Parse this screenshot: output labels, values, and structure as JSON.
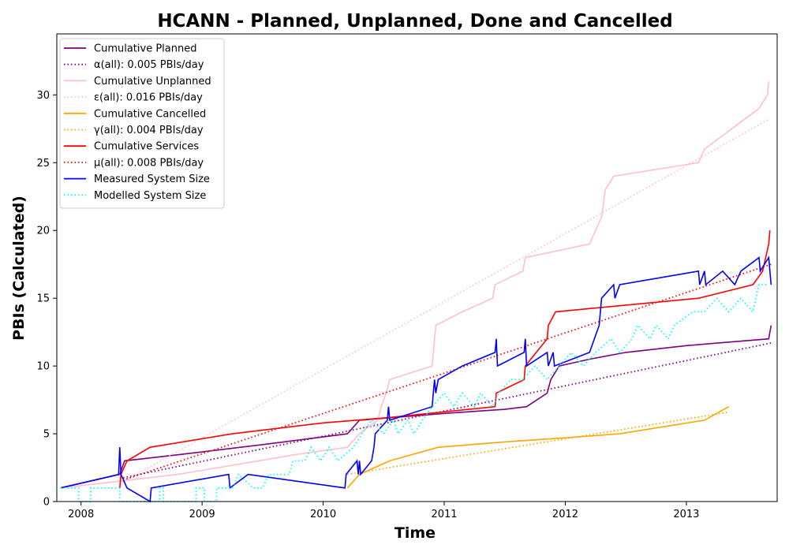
{
  "chart_data": {
    "type": "line",
    "title": "HCANN - Planned, Unplanned, Done  and Cancelled",
    "xlabel": "Time",
    "ylabel": "PBIs (Calculated)",
    "xlim": [
      2007.8,
      2013.75
    ],
    "ylim": [
      0,
      34.5
    ],
    "x_ticks": [
      2008,
      2009,
      2010,
      2011,
      2012,
      2013
    ],
    "y_ticks": [
      0,
      5,
      10,
      15,
      20,
      25,
      30
    ],
    "grid": false,
    "legend_position": "top-left",
    "series": [
      {
        "name": "Cumulative Planned",
        "color": "#800080",
        "style": "solid",
        "points": [
          [
            2007.83,
            1
          ],
          [
            2008.32,
            2
          ],
          [
            2008.36,
            3
          ],
          [
            2008.85,
            3.5
          ],
          [
            2009.5,
            4.2
          ],
          [
            2010.2,
            5
          ],
          [
            2010.3,
            6
          ],
          [
            2011.0,
            6.5
          ],
          [
            2011.5,
            6.8
          ],
          [
            2011.68,
            7
          ],
          [
            2011.85,
            8
          ],
          [
            2011.88,
            9
          ],
          [
            2011.95,
            10
          ],
          [
            2012.2,
            10.5
          ],
          [
            2012.5,
            11
          ],
          [
            2013.0,
            11.5
          ],
          [
            2013.68,
            12
          ],
          [
            2013.7,
            13
          ]
        ]
      },
      {
        "name": "α(all): 0.005 PBIs/day",
        "color": "#800080",
        "style": "dotted",
        "points": [
          [
            2008.32,
            1.7
          ],
          [
            2013.7,
            11.7
          ]
        ]
      },
      {
        "name": "Cumulative Unplanned",
        "color": "#ffc0cb",
        "style": "solid",
        "points": [
          [
            2007.83,
            1
          ],
          [
            2008.32,
            1.5
          ],
          [
            2008.8,
            2
          ],
          [
            2009.8,
            3.5
          ],
          [
            2010.2,
            4
          ],
          [
            2010.3,
            5
          ],
          [
            2010.45,
            6
          ],
          [
            2010.48,
            7
          ],
          [
            2010.52,
            8
          ],
          [
            2010.55,
            9
          ],
          [
            2010.9,
            10
          ],
          [
            2010.93,
            13
          ],
          [
            2011.15,
            14
          ],
          [
            2011.4,
            15
          ],
          [
            2011.42,
            16
          ],
          [
            2011.65,
            17
          ],
          [
            2011.67,
            18
          ],
          [
            2012.2,
            19
          ],
          [
            2012.3,
            21
          ],
          [
            2012.33,
            23
          ],
          [
            2012.4,
            24
          ],
          [
            2013.1,
            25
          ],
          [
            2013.15,
            26
          ],
          [
            2013.3,
            27
          ],
          [
            2013.45,
            28
          ],
          [
            2013.6,
            29
          ],
          [
            2013.67,
            30
          ],
          [
            2013.68,
            31
          ]
        ]
      },
      {
        "name": "ε(all): 0.016 PBIs/day",
        "color": "#ffc0cb",
        "style": "dotted",
        "points": [
          [
            2008.32,
            1.3
          ],
          [
            2013.68,
            28.2
          ]
        ]
      },
      {
        "name": "Cumulative Cancelled",
        "color": "#ffa500",
        "style": "solid",
        "points": [
          [
            2010.2,
            1
          ],
          [
            2010.3,
            2
          ],
          [
            2010.55,
            3
          ],
          [
            2010.95,
            4
          ],
          [
            2011.5,
            4.4
          ],
          [
            2012.0,
            4.7
          ],
          [
            2012.45,
            5
          ],
          [
            2013.15,
            6
          ],
          [
            2013.35,
            7
          ]
        ]
      },
      {
        "name": "γ(all): 0.004 PBIs/day",
        "color": "#ffa500",
        "style": "dotted",
        "points": [
          [
            2010.2,
            2
          ],
          [
            2013.35,
            6.6
          ]
        ]
      },
      {
        "name": "Cumulative Services",
        "color": "#ff0000",
        "style": "solid",
        "points": [
          [
            2008.32,
            1
          ],
          [
            2008.33,
            2
          ],
          [
            2008.38,
            3
          ],
          [
            2008.57,
            4
          ],
          [
            2009.25,
            5
          ],
          [
            2010.0,
            5.8
          ],
          [
            2010.55,
            6.2
          ],
          [
            2011.42,
            7
          ],
          [
            2011.43,
            8
          ],
          [
            2011.66,
            9
          ],
          [
            2011.67,
            10
          ],
          [
            2011.85,
            12
          ],
          [
            2011.86,
            13
          ],
          [
            2011.92,
            14
          ],
          [
            2013.1,
            15
          ],
          [
            2013.55,
            16
          ],
          [
            2013.63,
            17
          ],
          [
            2013.68,
            19
          ],
          [
            2013.69,
            20
          ]
        ]
      },
      {
        "name": "μ(all): 0.008 PBIs/day",
        "color": "#ff0000",
        "style": "dotted",
        "points": [
          [
            2008.32,
            1.5
          ],
          [
            2013.7,
            17.5
          ]
        ]
      },
      {
        "name": "Measured System Size",
        "color": "#0000ff",
        "style": "solid",
        "points": [
          [
            2007.83,
            1
          ],
          [
            2008.31,
            2
          ],
          [
            2008.32,
            4
          ],
          [
            2008.33,
            2
          ],
          [
            2008.38,
            1
          ],
          [
            2008.57,
            0
          ],
          [
            2008.58,
            1
          ],
          [
            2009.22,
            2
          ],
          [
            2009.23,
            1
          ],
          [
            2009.38,
            2
          ],
          [
            2010.18,
            1
          ],
          [
            2010.19,
            2
          ],
          [
            2010.28,
            3
          ],
          [
            2010.29,
            2
          ],
          [
            2010.3,
            3
          ],
          [
            2010.31,
            2
          ],
          [
            2010.4,
            3
          ],
          [
            2010.42,
            4
          ],
          [
            2010.43,
            5
          ],
          [
            2010.53,
            6
          ],
          [
            2010.54,
            7
          ],
          [
            2010.55,
            6
          ],
          [
            2010.9,
            7
          ],
          [
            2010.92,
            9
          ],
          [
            2010.93,
            8
          ],
          [
            2010.95,
            9
          ],
          [
            2011.15,
            10
          ],
          [
            2011.42,
            11
          ],
          [
            2011.43,
            12
          ],
          [
            2011.44,
            10
          ],
          [
            2011.66,
            11
          ],
          [
            2011.67,
            12
          ],
          [
            2011.68,
            10
          ],
          [
            2011.85,
            11
          ],
          [
            2011.86,
            10
          ],
          [
            2011.9,
            11
          ],
          [
            2011.91,
            10
          ],
          [
            2012.2,
            11
          ],
          [
            2012.28,
            13
          ],
          [
            2012.3,
            15
          ],
          [
            2012.4,
            16
          ],
          [
            2012.41,
            15
          ],
          [
            2012.45,
            16
          ],
          [
            2013.1,
            17
          ],
          [
            2013.11,
            16
          ],
          [
            2013.15,
            17
          ],
          [
            2013.16,
            16
          ],
          [
            2013.3,
            17
          ],
          [
            2013.4,
            16
          ],
          [
            2013.45,
            17
          ],
          [
            2013.6,
            18
          ],
          [
            2013.61,
            17
          ],
          [
            2013.68,
            18
          ],
          [
            2013.69,
            17
          ],
          [
            2013.7,
            16
          ]
        ]
      },
      {
        "name": "Modelled System Size",
        "color": "#00ffff",
        "style": "dotted",
        "points": [
          [
            2007.83,
            1
          ],
          [
            2007.98,
            1
          ],
          [
            2007.98,
            0
          ],
          [
            2008.08,
            0
          ],
          [
            2008.08,
            1
          ],
          [
            2008.32,
            1
          ],
          [
            2008.32,
            0
          ],
          [
            2008.65,
            0
          ],
          [
            2008.65,
            1
          ],
          [
            2008.68,
            1
          ],
          [
            2008.68,
            0
          ],
          [
            2008.95,
            0
          ],
          [
            2008.95,
            1
          ],
          [
            2009.02,
            1
          ],
          [
            2009.02,
            0
          ],
          [
            2009.12,
            0
          ],
          [
            2009.12,
            1
          ],
          [
            2009.25,
            1
          ],
          [
            2009.3,
            2
          ],
          [
            2009.42,
            1
          ],
          [
            2009.5,
            1
          ],
          [
            2009.55,
            2
          ],
          [
            2009.72,
            2
          ],
          [
            2009.75,
            3
          ],
          [
            2009.85,
            3
          ],
          [
            2009.9,
            4
          ],
          [
            2009.98,
            3
          ],
          [
            2010.05,
            4
          ],
          [
            2010.12,
            3
          ],
          [
            2010.25,
            4
          ],
          [
            2010.32,
            5
          ],
          [
            2010.4,
            6
          ],
          [
            2010.5,
            5
          ],
          [
            2010.58,
            6
          ],
          [
            2010.62,
            5
          ],
          [
            2010.7,
            6
          ],
          [
            2010.75,
            5
          ],
          [
            2010.82,
            6
          ],
          [
            2010.9,
            7
          ],
          [
            2011.0,
            8
          ],
          [
            2011.08,
            7
          ],
          [
            2011.15,
            8
          ],
          [
            2011.25,
            7
          ],
          [
            2011.3,
            8
          ],
          [
            2011.4,
            7
          ],
          [
            2011.45,
            8
          ],
          [
            2011.55,
            9
          ],
          [
            2011.65,
            9
          ],
          [
            2011.75,
            10
          ],
          [
            2011.85,
            9
          ],
          [
            2011.95,
            10
          ],
          [
            2012.05,
            11
          ],
          [
            2012.15,
            10
          ],
          [
            2012.25,
            11
          ],
          [
            2012.38,
            12
          ],
          [
            2012.45,
            11
          ],
          [
            2012.55,
            12
          ],
          [
            2012.6,
            13
          ],
          [
            2012.7,
            12
          ],
          [
            2012.75,
            13
          ],
          [
            2012.85,
            12
          ],
          [
            2012.9,
            13
          ],
          [
            2013.05,
            14
          ],
          [
            2013.15,
            14
          ],
          [
            2013.25,
            15
          ],
          [
            2013.35,
            14
          ],
          [
            2013.45,
            15
          ],
          [
            2013.55,
            14
          ],
          [
            2013.6,
            16
          ],
          [
            2013.68,
            16
          ]
        ]
      }
    ]
  }
}
